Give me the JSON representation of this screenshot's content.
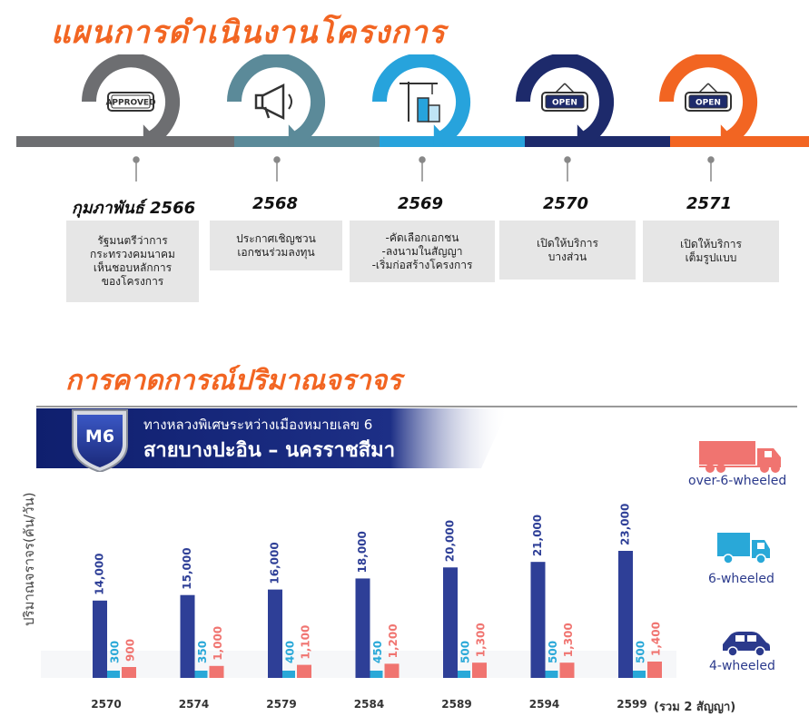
{
  "headings": {
    "plan": "แผนการดำเนินงานโครงการ",
    "traffic": "การคาดการณ์ปริมาณจราจร"
  },
  "timeline": [
    {
      "year": "กุมภาพันธ์ 2566",
      "desc": "รัฐมนตรีว่าการ\nกระทรวงคมนาคม\nเห็นชอบหลักการ\nของโครงการ",
      "icon": "approved-stamp-icon",
      "icon_text": "APPROVED",
      "color": "#6d6e71"
    },
    {
      "year": "2568",
      "desc": "ประกาศเชิญชวน\nเอกชนร่วมลงทุน",
      "icon": "megaphone-icon",
      "icon_text": "",
      "color": "#5b8a99"
    },
    {
      "year": "2569",
      "desc": "-คัดเลือกเอกชน\n-ลงนามในสัญญา\n-เริ่มก่อสร้างโครงการ",
      "icon": "construction-crane-icon",
      "icon_text": "",
      "color": "#27a3dc"
    },
    {
      "year": "2570",
      "desc": "เปิดให้บริการ\nบางส่วน",
      "icon": "open-sign-icon",
      "icon_text": "OPEN",
      "color": "#1d2a6b"
    },
    {
      "year": "2571",
      "desc": "เปิดให้บริการ\nเต็มรูปแบบ",
      "icon": "open-sign-icon",
      "icon_text": "OPEN",
      "color": "#f26522"
    }
  ],
  "banner": {
    "badge": "M6",
    "subtitle": "ทางหลวงพิเศษระหว่างเมืองหมายเลข 6",
    "title": "สายบางปะอิน – นครราชสีมา"
  },
  "legend": [
    {
      "label": "over-6-wheeled",
      "icon": "truck-trailer-icon",
      "color": "#f07470"
    },
    {
      "label": "6-wheeled",
      "icon": "box-truck-icon",
      "color": "#29a8d8"
    },
    {
      "label": "4-wheeled",
      "icon": "car-icon",
      "color": "#2b3a8c"
    }
  ],
  "chart_data": {
    "type": "bar",
    "ylabel": "ปริมาณจราจร(คัน/วัน)",
    "categories": [
      "2570",
      "2574",
      "2579",
      "2584",
      "2589",
      "2594",
      "2599"
    ],
    "x_note": "(รวม 2 สัญญา)",
    "series": [
      {
        "name": "4-wheeled",
        "color": "#2e3f97",
        "values": [
          14000,
          15000,
          16000,
          18000,
          20000,
          21000,
          23000
        ]
      },
      {
        "name": "6-wheeled",
        "color": "#29a8d8",
        "values": [
          300,
          350,
          400,
          450,
          500,
          500,
          500
        ]
      },
      {
        "name": "over-6-wheeled",
        "color": "#f07470",
        "values": [
          900,
          1000,
          1100,
          1200,
          1300,
          1300,
          1400
        ]
      }
    ],
    "value_labels": [
      [
        "14,000",
        "15,000",
        "16,000",
        "18,000",
        "20,000",
        "21,000",
        "23,000"
      ],
      [
        "300",
        "350",
        "400",
        "450",
        "500",
        "500",
        "500"
      ],
      [
        "900",
        "1,000",
        "1,100",
        "1,200",
        "1,300",
        "1,300",
        "1,400"
      ]
    ],
    "grid": false,
    "legend_position": "right"
  }
}
